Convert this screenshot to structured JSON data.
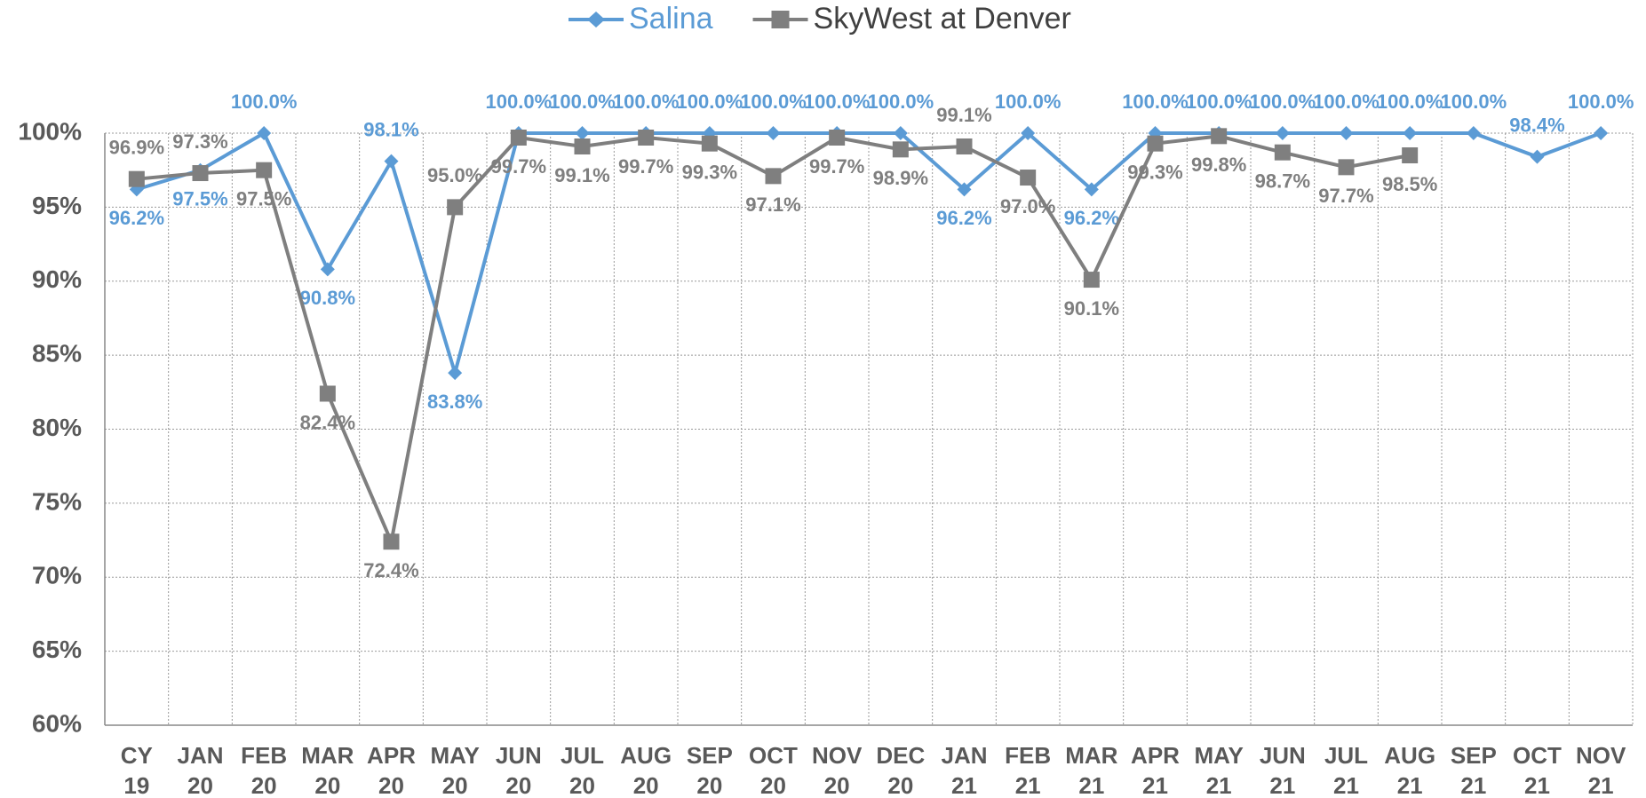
{
  "chart_data": {
    "type": "line",
    "categories": [
      "CY 19",
      "JAN 20",
      "FEB 20",
      "MAR 20",
      "APR 20",
      "MAY 20",
      "JUN 20",
      "JUL 20",
      "AUG 20",
      "SEP 20",
      "OCT 20",
      "NOV 20",
      "DEC 20",
      "JAN 21",
      "FEB 21",
      "MAR 21",
      "APR 21",
      "MAY 21",
      "JUN 21",
      "JUL 21",
      "AUG 21",
      "SEP 21",
      "OCT 21",
      "NOV 21"
    ],
    "series": [
      {
        "name": "Salina",
        "color": "#5b9bd5",
        "marker": "diamond",
        "values": [
          96.2,
          97.5,
          100,
          90.8,
          98.1,
          83.8,
          100,
          100,
          100,
          100,
          100,
          100,
          100,
          96.2,
          100,
          96.2,
          100,
          100,
          100,
          100,
          100,
          100,
          98.4,
          100
        ],
        "value_labels": [
          "96.2%",
          "97.5%",
          "100.0%",
          "90.8%",
          "98.1%",
          "83.8%",
          "100.0%",
          "100.0%",
          "100.0%",
          "100.0%",
          "100.0%",
          "100.0%",
          "100.0%",
          "96.2%",
          "100.0%",
          "96.2%",
          "100.0%",
          "100.0%",
          "100.0%",
          "100.0%",
          "100.0%",
          "100.0%",
          "98.4%",
          "100.0%"
        ]
      },
      {
        "name": "SkyWest at Denver",
        "color": "#7f7f7f",
        "marker": "square",
        "values": [
          96.9,
          97.3,
          97.5,
          82.4,
          72.4,
          95.0,
          99.7,
          99.1,
          99.7,
          99.3,
          97.1,
          99.7,
          98.9,
          99.1,
          97.0,
          90.1,
          99.3,
          99.8,
          98.7,
          97.7,
          98.5,
          null,
          null,
          null
        ],
        "value_labels": [
          "96.9%",
          "97.3%",
          "97.5%",
          "82.4%",
          "72.4%",
          "95.0%",
          "99.7%",
          "99.1%",
          "99.7%",
          "99.3%",
          "97.1%",
          "99.7%",
          "98.9%",
          "99.1%",
          "97.0%",
          "90.1%",
          "99.3%",
          "99.8%",
          "98.7%",
          "97.7%",
          "98.5%",
          null,
          null,
          null
        ]
      }
    ],
    "ylim": [
      60,
      100
    ],
    "yticks": [
      {
        "value": 60,
        "label": "60%"
      },
      {
        "value": 65,
        "label": "65%"
      },
      {
        "value": 70,
        "label": "70%"
      },
      {
        "value": 75,
        "label": "75%"
      },
      {
        "value": 80,
        "label": "80%"
      },
      {
        "value": 85,
        "label": "85%"
      },
      {
        "value": 90,
        "label": "90%"
      },
      {
        "value": 95,
        "label": "95%"
      },
      {
        "value": 100,
        "label": "100%"
      }
    ],
    "grid": true,
    "legend": "top"
  }
}
